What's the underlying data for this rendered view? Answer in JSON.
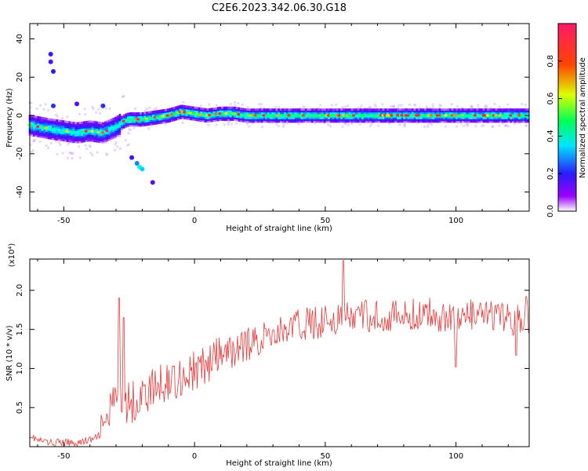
{
  "title": "C2E6.2023.342.06.30.G18",
  "colors": {
    "snr_line": "#e83a3a",
    "colormap": [
      "#ffffff",
      "#7a00ff",
      "#2a1cff",
      "#00ffff",
      "#00ff66",
      "#ffff00",
      "#ff2a00",
      "#ff1a66"
    ]
  },
  "chart_data": [
    {
      "type": "heatmap",
      "name": "spectrogram",
      "xlabel": "Height of straight line (km)",
      "ylabel": "Frequency (Hz)",
      "xlim": [
        -63,
        128
      ],
      "ylim": [
        -50,
        48
      ],
      "xticks": [
        -50,
        0,
        50,
        100
      ],
      "yticks": [
        -40,
        -20,
        0,
        20,
        40
      ],
      "ridge": {
        "x": [
          -63,
          -55,
          -45,
          -40,
          -35,
          -30,
          -27,
          -25,
          -20,
          -15,
          -10,
          -5,
          0,
          5,
          10,
          15,
          20,
          40,
          60,
          80,
          100,
          128
        ],
        "y": [
          -5,
          -7,
          -9,
          -8,
          -9,
          -6,
          -3,
          -2,
          -2,
          -1,
          0,
          2,
          1,
          0,
          1,
          1,
          0,
          0,
          0,
          0,
          0,
          0
        ]
      },
      "scatter_blobs": [
        {
          "x": -55,
          "y": 32,
          "v": 0.15
        },
        {
          "x": -55,
          "y": 28,
          "v": 0.12
        },
        {
          "x": -54,
          "y": 23,
          "v": 0.18
        },
        {
          "x": -54,
          "y": 5,
          "v": 0.2
        },
        {
          "x": -22,
          "y": -25,
          "v": 0.25
        },
        {
          "x": -21,
          "y": -27,
          "v": 0.35
        },
        {
          "x": -20,
          "y": -28,
          "v": 0.3
        },
        {
          "x": -24,
          "y": -22,
          "v": 0.15
        },
        {
          "x": -16,
          "y": -35,
          "v": 0.1
        },
        {
          "x": -45,
          "y": 6,
          "v": 0.12
        },
        {
          "x": -35,
          "y": 5,
          "v": 0.2
        }
      ],
      "colorbar": {
        "label": "Normalized spectral amplitude",
        "range": [
          0,
          1
        ],
        "ticks": [
          0.0,
          0.2,
          0.4,
          0.6,
          0.8
        ],
        "tick_labels": [
          "0.0",
          "0.2",
          "0.4",
          "0.6",
          "0.8"
        ]
      }
    },
    {
      "type": "line",
      "name": "snr",
      "xlabel": "Height of straight line (km)",
      "ylabel": "SNR (10 * v/v)",
      "yscale_label": "(x10⁴)",
      "xlim": [
        -63,
        128
      ],
      "ylim": [
        0,
        2.4
      ],
      "xticks": [
        -50,
        0,
        50,
        100
      ],
      "yticks": [
        0.5,
        1.0,
        1.5,
        2.0
      ],
      "ytick_labels": [
        "0.5",
        "1.0",
        "1.5",
        "2.0"
      ],
      "trend": {
        "x": [
          -63,
          -60,
          -55,
          -45,
          -38,
          -35,
          -32,
          -30,
          -25,
          -20,
          -15,
          -10,
          -5,
          0,
          5,
          10,
          20,
          30,
          40,
          50,
          60,
          70,
          80,
          90,
          100,
          110,
          120,
          128
        ],
        "y": [
          0.15,
          0.08,
          0.05,
          0.05,
          0.1,
          0.2,
          0.45,
          0.6,
          0.55,
          0.65,
          0.75,
          0.85,
          0.9,
          0.95,
          1.05,
          1.15,
          1.3,
          1.45,
          1.55,
          1.62,
          1.65,
          1.68,
          1.66,
          1.7,
          1.65,
          1.68,
          1.62,
          1.65
        ]
      },
      "spikes": [
        {
          "x": -29,
          "y": 1.9
        },
        {
          "x": -27,
          "y": 1.65
        },
        {
          "x": 57,
          "y": 2.38
        },
        {
          "x": 100,
          "y": 1.02
        },
        {
          "x": 123,
          "y": 1.17
        },
        {
          "x": 127,
          "y": 1.92
        }
      ]
    }
  ]
}
